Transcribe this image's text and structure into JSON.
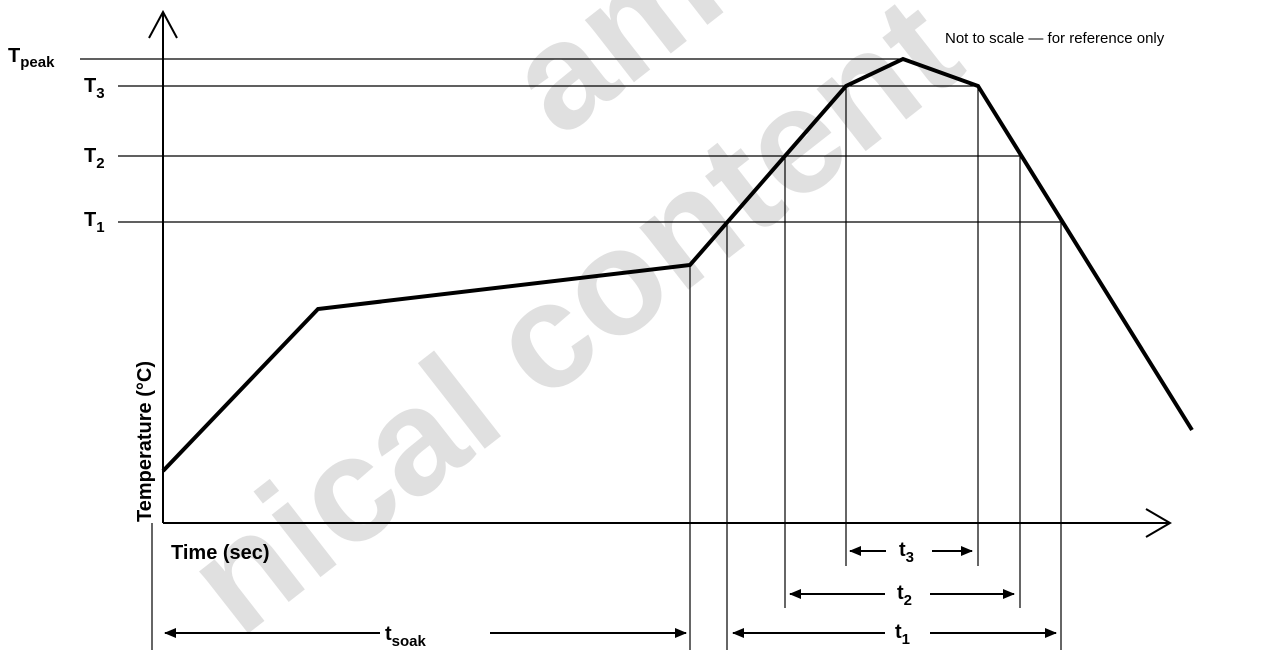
{
  "note": "Not to scale — for reference only",
  "watermark": {
    "line1": "ams A",
    "line2": "nical content"
  },
  "axes": {
    "y_label": "Temperature (°C)",
    "x_label": "Time (sec)"
  },
  "temperature_levels": [
    {
      "main": "T",
      "sub": "peak"
    },
    {
      "main": "T",
      "sub": "3"
    },
    {
      "main": "T",
      "sub": "2"
    },
    {
      "main": "T",
      "sub": "1"
    }
  ],
  "intervals": [
    {
      "main": "t",
      "sub": "soak"
    },
    {
      "main": "t",
      "sub": "1"
    },
    {
      "main": "t",
      "sub": "2"
    },
    {
      "main": "t",
      "sub": "3"
    }
  ],
  "colors": {
    "line": "#000000",
    "watermark": "#c8c8c8"
  }
}
